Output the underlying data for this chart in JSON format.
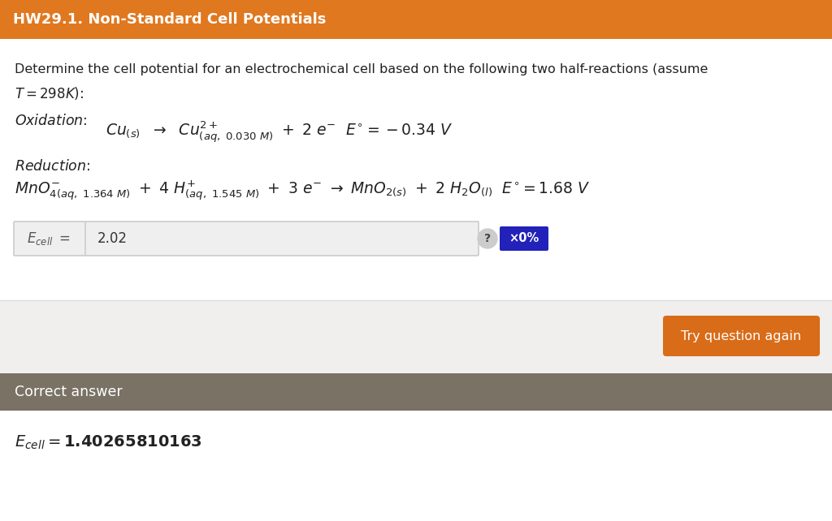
{
  "title": "HW29.1. Non-Standard Cell Potentials",
  "title_bg": "#E07820",
  "title_color": "#FFFFFF",
  "bg_top": "#FFFFFF",
  "bg_bottom": "#F0EFED",
  "intro_line1": "Determine the cell potential for an electrochemical cell based on the following two half-reactions (assume",
  "intro_line2_math": "$T = 298K$):",
  "oxidation_label": "Oxidation:",
  "reduction_label": "Reduction:",
  "ecell_answer": "2.02",
  "correct_answer": "1.40265810163",
  "correct_bg": "#7A7265",
  "try_button_bg": "#D96C18",
  "try_button_text": "Try question again",
  "input_bg": "#EFEFEF",
  "input_border": "#CCCCCC",
  "x_badge_bg": "#2222BB",
  "divider_color": "#DDDDDD",
  "text_color": "#222222"
}
